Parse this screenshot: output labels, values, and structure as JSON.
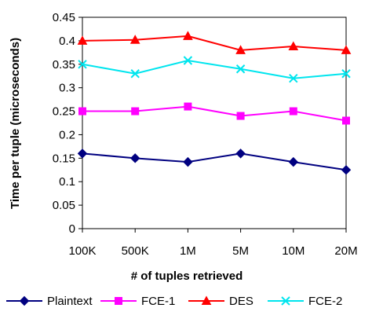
{
  "chart_data": {
    "type": "line",
    "title": "",
    "xlabel": "# of tuples retrieved",
    "ylabel": "Time per tuple (microseconds)",
    "categories": [
      "100K",
      "500K",
      "1M",
      "5M",
      "10M",
      "20M"
    ],
    "ylim": [
      0,
      0.45
    ],
    "yticks": [
      "0",
      "0.05",
      "0.1",
      "0.15",
      "0.2",
      "0.25",
      "0.3",
      "0.35",
      "0.4",
      "0.45"
    ],
    "grid": false,
    "legend_position": "bottom",
    "series": [
      {
        "name": "Plaintext",
        "color": "#000080",
        "marker": "diamond",
        "values": [
          0.16,
          0.15,
          0.142,
          0.16,
          0.142,
          0.125
        ]
      },
      {
        "name": "FCE-1",
        "color": "#ff00ff",
        "marker": "square",
        "values": [
          0.25,
          0.25,
          0.26,
          0.24,
          0.25,
          0.23
        ]
      },
      {
        "name": "DES",
        "color": "#ff0000",
        "marker": "triangle",
        "values": [
          0.4,
          0.402,
          0.41,
          0.38,
          0.388,
          0.38
        ]
      },
      {
        "name": "FCE-2",
        "color": "#00e5ee",
        "marker": "x",
        "values": [
          0.35,
          0.33,
          0.358,
          0.34,
          0.32,
          0.33
        ]
      }
    ]
  }
}
